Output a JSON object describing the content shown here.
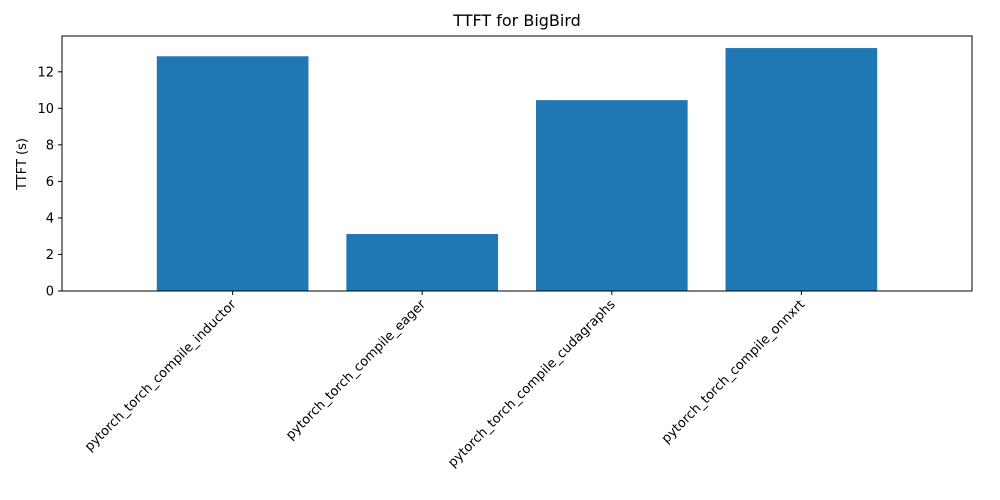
{
  "chart_data": {
    "type": "bar",
    "title": "TTFT for BigBird",
    "xlabel": "",
    "ylabel": "TTFT (s)",
    "categories": [
      "pytorch_torch_compile_inductor",
      "pytorch_torch_compile_eager",
      "pytorch_torch_compile_cudagraphs",
      "pytorch_torch_compile_onnxrt"
    ],
    "values": [
      12.85,
      3.12,
      10.45,
      13.3
    ],
    "ylim": [
      0,
      13.96
    ],
    "yticks": [
      0,
      2,
      4,
      6,
      8,
      10,
      12
    ],
    "xtick_rotation": 45,
    "grid": false,
    "legend": "none",
    "bar_color": "#1f77b4"
  }
}
